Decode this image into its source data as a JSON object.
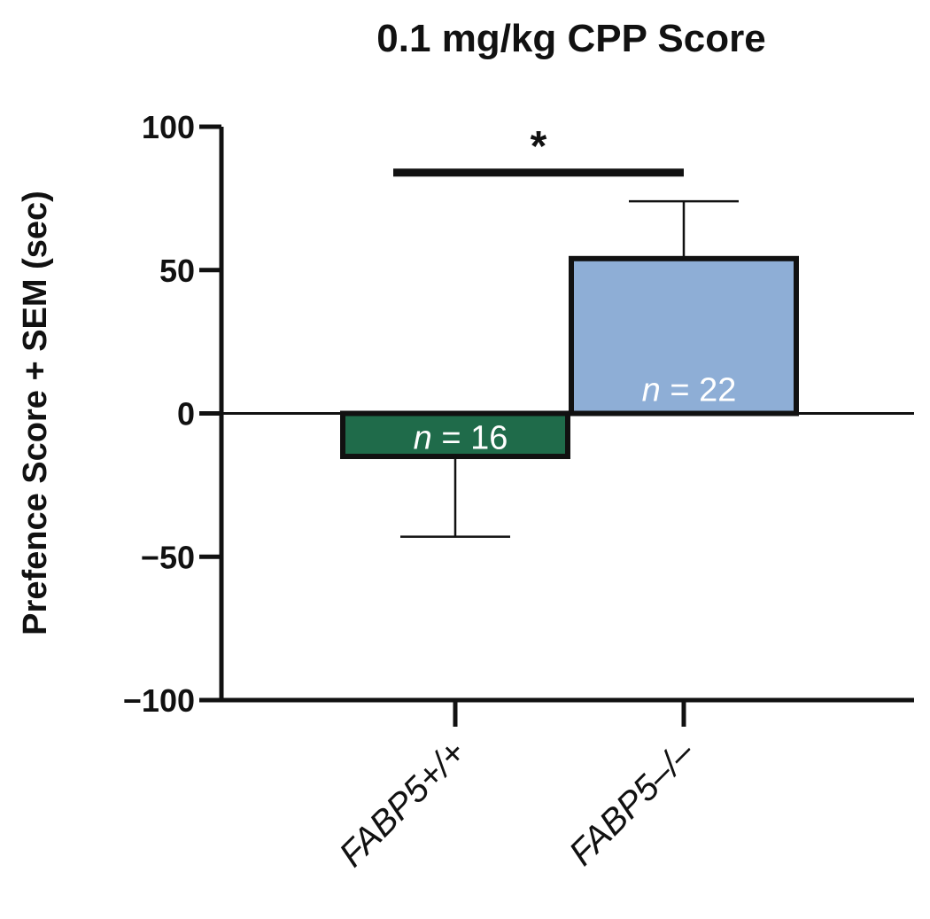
{
  "chart_data": {
    "type": "bar",
    "title": "0.1 mg/kg CPP Score",
    "xlabel": "",
    "ylabel": "Prefence Score + SEM (sec)",
    "ylim": [
      -100,
      100
    ],
    "yticks": [
      100,
      50,
      0,
      -50,
      -100
    ],
    "ytick_labels": [
      "100",
      "50",
      "0",
      "−50",
      "−100"
    ],
    "categories": [
      "FABP5+/+",
      "FABP5–/–"
    ],
    "values": [
      -15,
      54
    ],
    "sem": [
      28,
      20
    ],
    "n_labels": [
      {
        "italic": "n",
        "rest": " = 16"
      },
      {
        "italic": "n",
        "rest": " = 22"
      }
    ],
    "colors": [
      "#1f6b4a",
      "#8eaed6"
    ],
    "grid": false,
    "significance": {
      "label": "*",
      "between": [
        0,
        1
      ],
      "y": 84
    }
  }
}
